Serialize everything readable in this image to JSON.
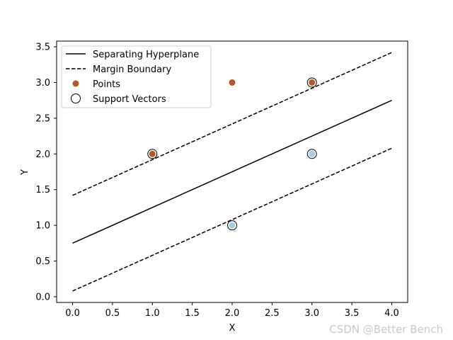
{
  "chart_data": {
    "type": "scatter",
    "title": "",
    "xlabel": "X",
    "ylabel": "Y",
    "xlim": [
      -0.2,
      4.2
    ],
    "ylim": [
      -0.08,
      3.58
    ],
    "xticks": [
      0.0,
      0.5,
      1.0,
      1.5,
      2.0,
      2.5,
      3.0,
      3.5,
      4.0
    ],
    "xtick_labels": [
      "0.0",
      "0.5",
      "1.0",
      "1.5",
      "2.0",
      "2.5",
      "3.0",
      "3.5",
      "4.0"
    ],
    "yticks": [
      0.0,
      0.5,
      1.0,
      1.5,
      2.0,
      2.5,
      3.0,
      3.5
    ],
    "ytick_labels": [
      "0.0",
      "0.5",
      "1.0",
      "1.5",
      "2.0",
      "2.5",
      "3.0",
      "3.5"
    ],
    "grid": false,
    "lines": [
      {
        "name": "Separating Hyperplane",
        "style": "solid",
        "color": "#000000",
        "x": [
          0,
          4
        ],
        "y": [
          0.75,
          2.75
        ]
      },
      {
        "name": "Margin Boundary",
        "style": "dashed",
        "color": "#000000",
        "x": [
          0,
          4
        ],
        "y": [
          1.42,
          3.42
        ]
      },
      {
        "name": "Margin Boundary (lower)",
        "style": "dashed",
        "color": "#000000",
        "x": [
          0,
          4
        ],
        "y": [
          0.08,
          2.08
        ]
      }
    ],
    "points": [
      {
        "x": 1,
        "y": 2,
        "class": 1
      },
      {
        "x": 2,
        "y": 3,
        "class": 1
      },
      {
        "x": 3,
        "y": 3,
        "class": 1
      },
      {
        "x": 2,
        "y": 1,
        "class": 0
      },
      {
        "x": 3,
        "y": 2,
        "class": 0
      }
    ],
    "class_colors": {
      "0": "#a6cee3",
      "1": "#b15928"
    },
    "support_vectors": [
      {
        "x": 1,
        "y": 2
      },
      {
        "x": 3,
        "y": 3
      },
      {
        "x": 2,
        "y": 1
      },
      {
        "x": 3,
        "y": 2
      }
    ],
    "legend": {
      "placement": "top-left",
      "entries": [
        {
          "label": "Separating Hyperplane",
          "marker": "solid-line"
        },
        {
          "label": "Margin Boundary",
          "marker": "dashed-line"
        },
        {
          "label": "Points",
          "marker": "filled-circle"
        },
        {
          "label": "Support Vectors",
          "marker": "open-circle"
        }
      ]
    }
  },
  "watermark": "CSDN @Better Bench"
}
